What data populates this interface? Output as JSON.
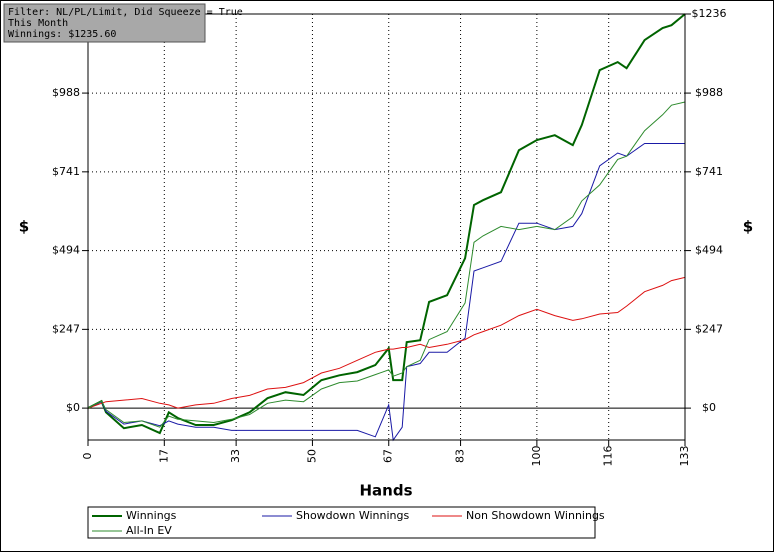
{
  "chart_data": {
    "type": "line",
    "info_lines": [
      "Filter: NL/PL/Limit, Did Squeeze = True",
      "This Month",
      "Winnings: $1235.60"
    ],
    "x_label": "Hands",
    "y_label": "$",
    "y2_label": "$",
    "x": [
      0,
      3,
      4,
      8,
      12,
      16,
      18,
      20,
      24,
      28,
      32,
      36,
      40,
      44,
      48,
      52,
      56,
      60,
      64,
      67,
      68,
      70,
      71,
      74,
      76,
      80,
      84,
      86,
      88,
      92,
      96,
      100,
      104,
      108,
      110,
      114,
      118,
      120,
      124,
      128,
      130,
      133
    ],
    "xlim": [
      0,
      133
    ],
    "xticks": [
      0,
      17,
      33,
      50,
      67,
      83,
      100,
      116,
      133
    ],
    "ylim": [
      -100,
      1236
    ],
    "yticks": [
      {
        "value": 0,
        "label": "$0"
      },
      {
        "value": 247,
        "label": "$247"
      },
      {
        "value": 494,
        "label": "$494"
      },
      {
        "value": 741,
        "label": "$741"
      },
      {
        "value": 988,
        "label": "$988"
      },
      {
        "value": 1236,
        "label": "$1236"
      }
    ],
    "grid": true,
    "series": [
      {
        "name": "Winnings",
        "color": "#006400",
        "width": 2,
        "values": [
          0,
          22,
          -13,
          -63,
          -53,
          -78,
          -13,
          -31,
          -53,
          -53,
          -38,
          -13,
          31,
          50,
          41,
          88,
          103,
          113,
          135,
          188,
          88,
          88,
          207,
          213,
          333,
          354,
          470,
          637,
          652,
          677,
          809,
          841,
          856,
          825,
          888,
          1060,
          1085,
          1066,
          1154,
          1192,
          1201,
          1236
        ]
      },
      {
        "name": "Showdown Winnings",
        "color": "#1a1aa6",
        "width": 1,
        "values": [
          0,
          20,
          -10,
          -50,
          -40,
          -55,
          -40,
          -50,
          -60,
          -60,
          -70,
          -70,
          -70,
          -70,
          -70,
          -70,
          -70,
          -70,
          -90,
          10,
          -100,
          -60,
          130,
          140,
          175,
          175,
          220,
          430,
          440,
          460,
          580,
          580,
          560,
          570,
          610,
          760,
          800,
          790,
          830,
          830,
          830,
          830
        ]
      },
      {
        "name": "Non Showdown Winnings",
        "color": "#dd1111",
        "width": 1,
        "values": [
          0,
          15,
          20,
          25,
          30,
          15,
          10,
          0,
          10,
          15,
          30,
          40,
          60,
          65,
          80,
          110,
          125,
          150,
          175,
          185,
          185,
          190,
          190,
          200,
          190,
          200,
          215,
          230,
          240,
          260,
          290,
          310,
          290,
          275,
          280,
          295,
          300,
          320,
          365,
          385,
          400,
          410
        ]
      },
      {
        "name": "All-In EV",
        "color": "#2e8b2e",
        "width": 1,
        "values": [
          0,
          22,
          -5,
          -45,
          -40,
          -60,
          -25,
          -35,
          -40,
          -45,
          -35,
          -20,
          15,
          25,
          20,
          60,
          80,
          85,
          105,
          120,
          100,
          110,
          130,
          150,
          215,
          240,
          330,
          520,
          540,
          570,
          560,
          570,
          560,
          600,
          650,
          700,
          780,
          790,
          870,
          920,
          950,
          960
        ]
      }
    ]
  }
}
